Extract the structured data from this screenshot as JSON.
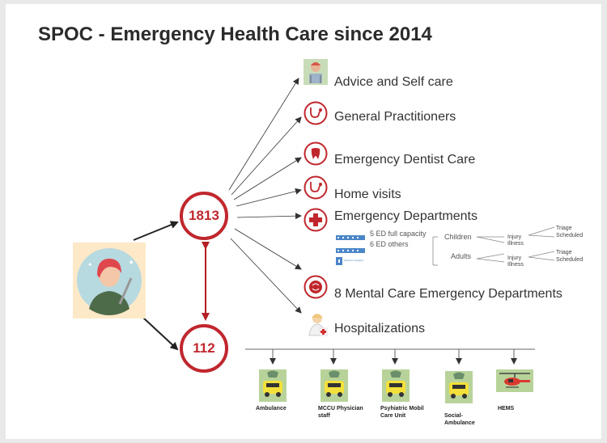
{
  "title": "SPOC - Emergency Health Care since 2014",
  "nodes": {
    "n1813": "1813",
    "n112": "112"
  },
  "services": [
    {
      "label": "Advice and Self care",
      "icon": "self-care-icon"
    },
    {
      "label": "General Practitioners",
      "icon": "stethoscope-icon"
    },
    {
      "label": "Emergency Dentist Care",
      "icon": "tooth-icon"
    },
    {
      "label": "Home visits",
      "icon": "stethoscope-icon"
    },
    {
      "label": "Emergency Departments",
      "icon": "red-cross-icon"
    },
    {
      "label": "8 Mental Care Emergency Departments",
      "icon": "brain-icon"
    },
    {
      "label": "Hospitalizations",
      "icon": "nurse-icon"
    }
  ],
  "ed": {
    "full": "5 ED full capacity",
    "others": "6 ED others",
    "hospital_caption": "Hvidovre Hospital",
    "children": "Children",
    "adults": "Adults",
    "injury": "Injury",
    "illness": "Illness",
    "triage": "Triage",
    "scheduled": "Scheduled"
  },
  "vehicles": [
    {
      "label": "Ambulance",
      "icon": "ambulance-icon"
    },
    {
      "label": "MCCU Physician staff",
      "icon": "physician-car-icon"
    },
    {
      "label": "Psyhiatric Mobil Care Unit",
      "icon": "psychiatric-car-icon"
    },
    {
      "label": "Social-Ambulance",
      "icon": "social-ambulance-icon"
    },
    {
      "label": "HEMS",
      "icon": "helicopter-icon"
    }
  ],
  "colors": {
    "accent": "#c0272d",
    "text": "#333333",
    "arrow": "#333333",
    "edblue": "#4a86c8"
  }
}
